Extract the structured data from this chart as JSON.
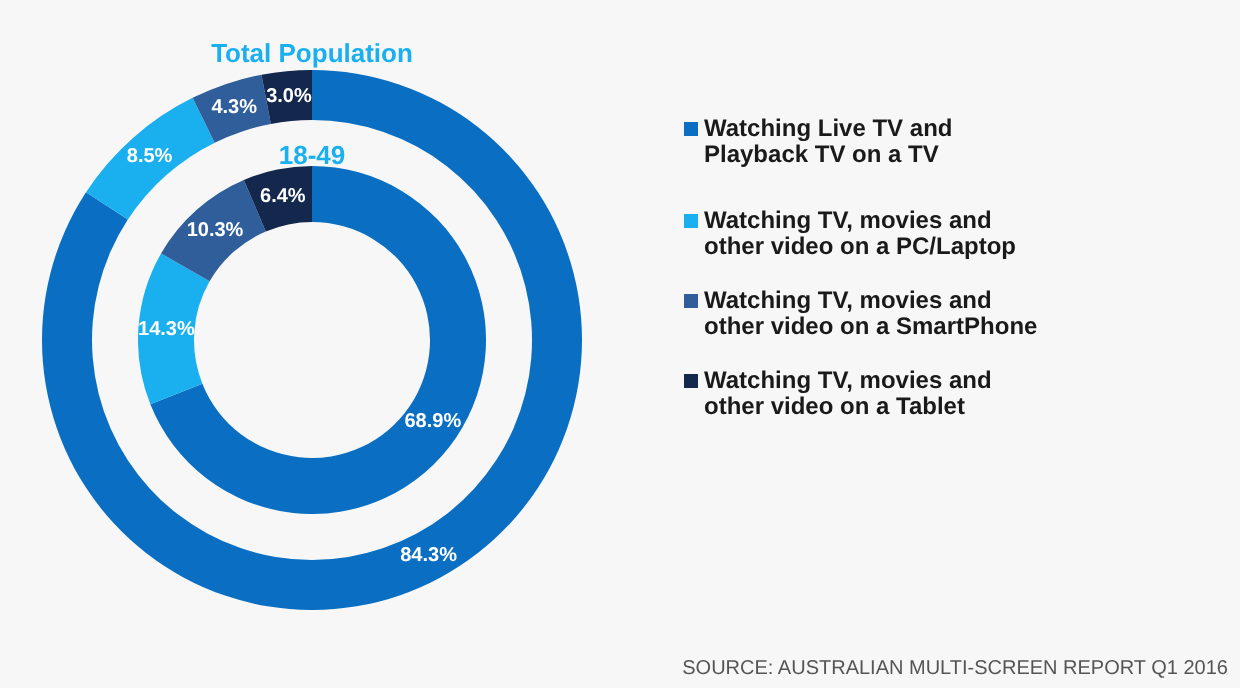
{
  "chart_data": {
    "type": "donut",
    "categories": [
      "Watching Live TV and Playback TV on a TV",
      "Watching TV, movies and other video on a PC/Laptop",
      "Watching TV, movies and other video on a SmartPhone",
      "Watching TV, movies and other video on a Tablet"
    ],
    "colors": [
      "#0a6fc2",
      "#1ab0ef",
      "#2f5e9a",
      "#14284e"
    ],
    "series": [
      {
        "name": "Total Population",
        "values": [
          84.3,
          8.5,
          4.3,
          3.0
        ],
        "value_labels": [
          "84.3%",
          "8.5%",
          "4.3%",
          "3.0%"
        ]
      },
      {
        "name": "18-49",
        "values": [
          68.9,
          14.3,
          10.3,
          6.4
        ],
        "value_labels": [
          "68.9%",
          "14.3%",
          "10.3%",
          "6.4%"
        ]
      }
    ],
    "legend": "right",
    "annotations": [
      "SOURCE: AUSTRALIAN MULTI-SCREEN REPORT Q1 2016"
    ]
  }
}
